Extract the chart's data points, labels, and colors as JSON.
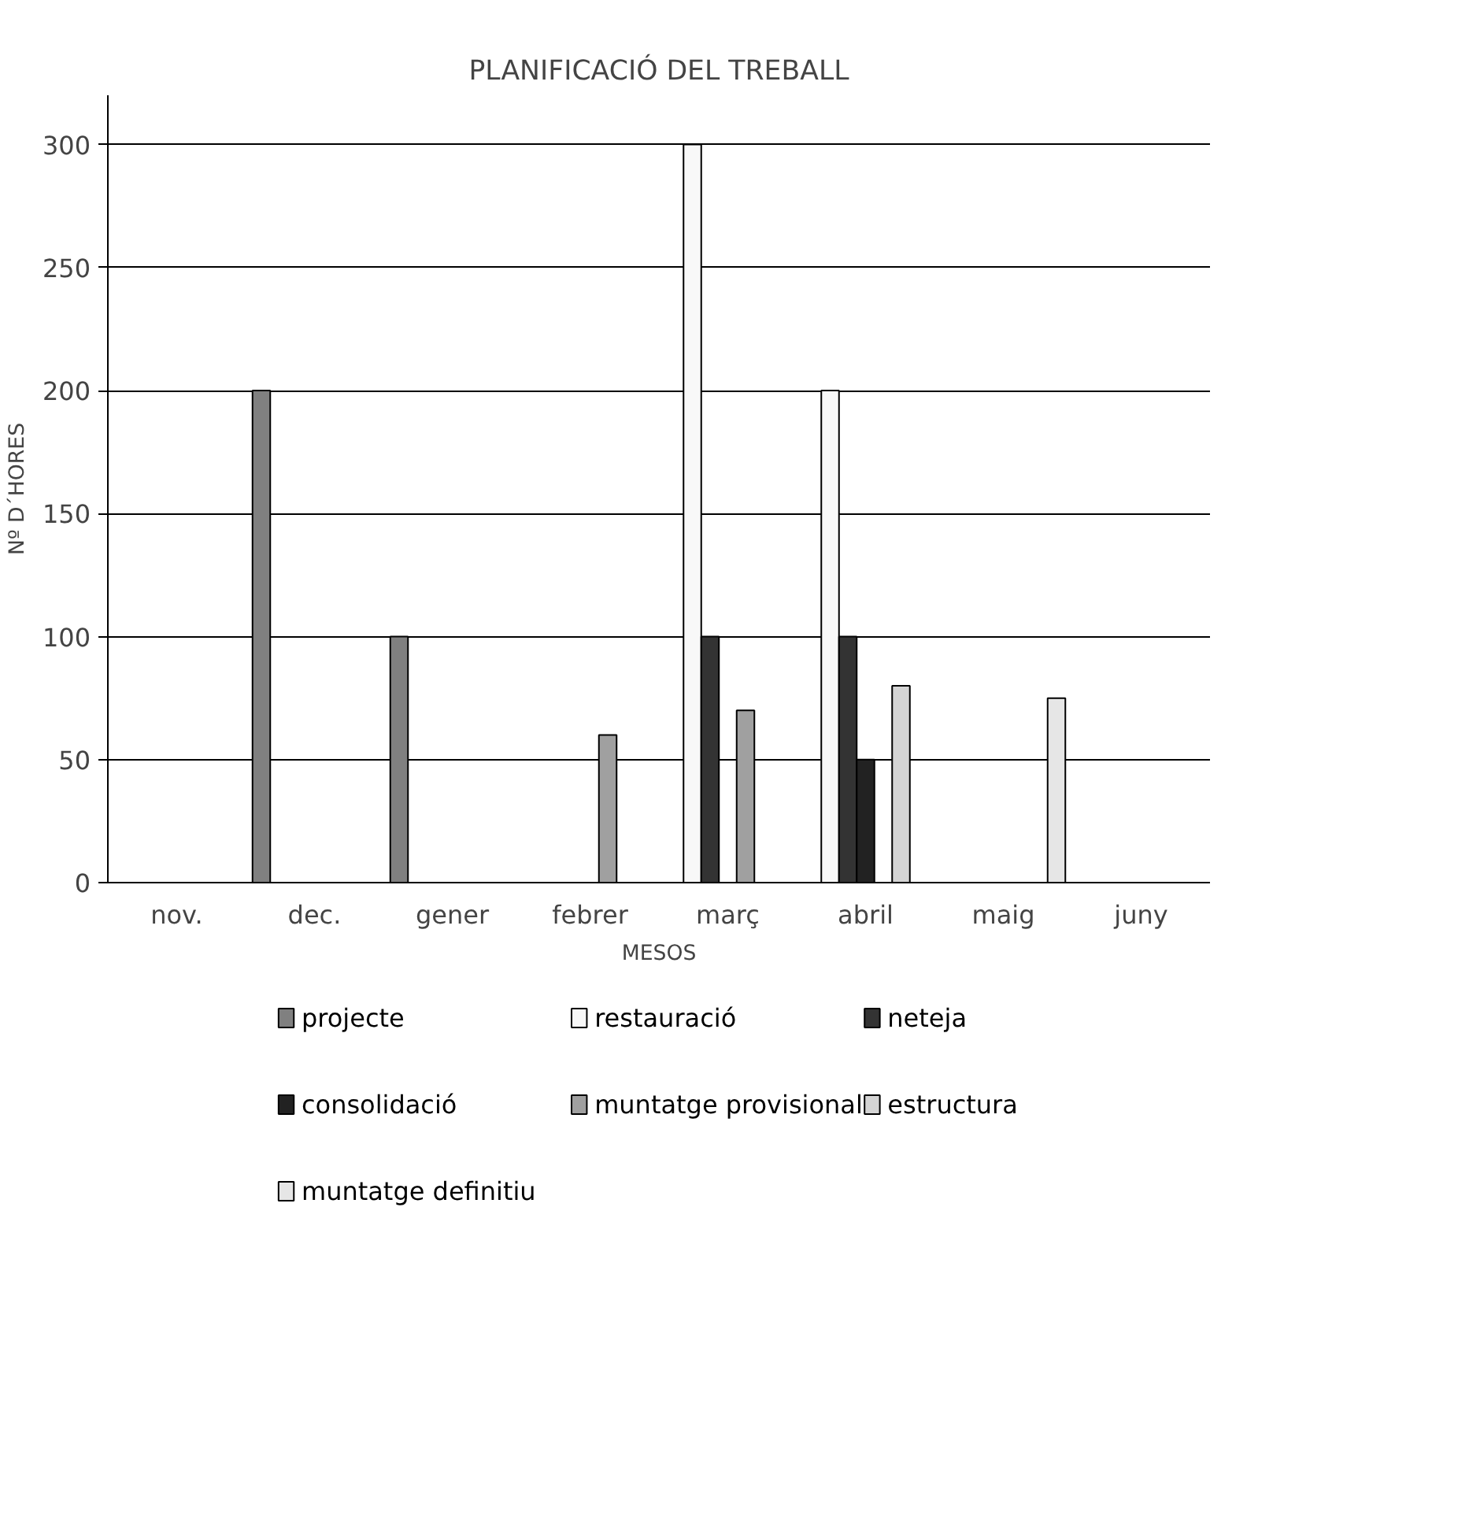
{
  "chart_data": {
    "type": "bar",
    "title": "PLANIFICACIÓ DEL TREBALL",
    "xlabel": "MESOS",
    "ylabel": "Nº D´HORES",
    "categories": [
      "nov.",
      "dec.",
      "gener",
      "febrer",
      "març",
      "abril",
      "maig",
      "juny"
    ],
    "ylim": [
      0,
      320
    ],
    "yticks": [
      0,
      50,
      100,
      150,
      200,
      250,
      300
    ],
    "grid": "y",
    "legend": "bottom",
    "series": [
      {
        "name": "projecte",
        "color": "#808080",
        "values": [
          0,
          200,
          100,
          0,
          0,
          0,
          0,
          0
        ]
      },
      {
        "name": "restauració",
        "color": "#f8f8f8",
        "values": [
          0,
          0,
          0,
          0,
          300,
          200,
          0,
          0
        ]
      },
      {
        "name": "neteja",
        "color": "#333333",
        "values": [
          0,
          0,
          0,
          0,
          100,
          100,
          0,
          0
        ]
      },
      {
        "name": "consolidació",
        "color": "#222222",
        "values": [
          0,
          0,
          0,
          0,
          0,
          50,
          0,
          0
        ]
      },
      {
        "name": "muntatge provisional",
        "color": "#a0a0a0",
        "values": [
          0,
          0,
          0,
          60,
          70,
          0,
          0,
          0
        ]
      },
      {
        "name": "estructura",
        "color": "#d4d4d4",
        "values": [
          0,
          0,
          0,
          0,
          0,
          80,
          0,
          0
        ]
      },
      {
        "name": "muntatge definitiu",
        "color": "#e6e6e6",
        "values": [
          0,
          0,
          0,
          0,
          0,
          0,
          75,
          0
        ]
      }
    ]
  }
}
